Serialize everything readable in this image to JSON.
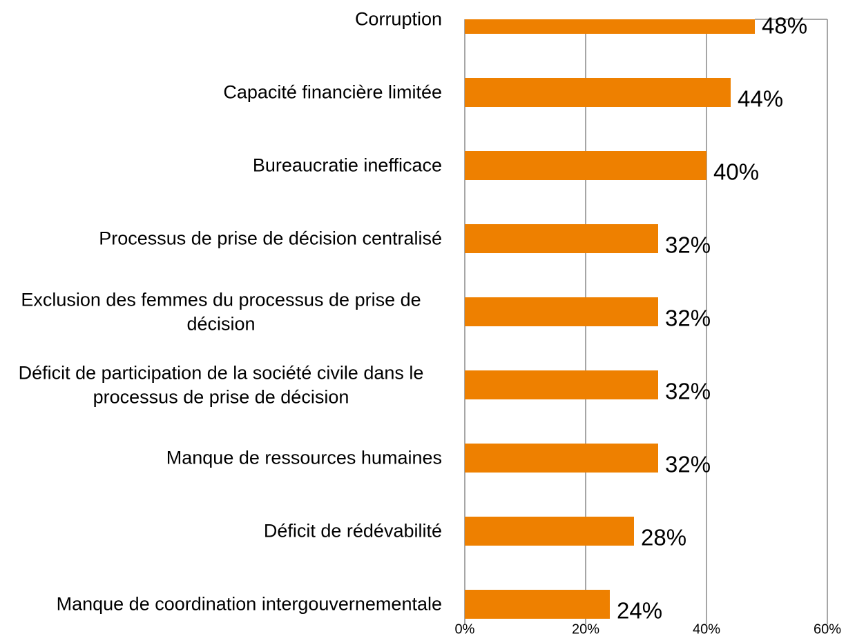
{
  "chart_data": {
    "type": "bar",
    "orientation": "horizontal",
    "categories": [
      "Corruption",
      "Capacité financière limitée",
      "Bureaucratie inefficace",
      "Processus de prise de décision centralisé",
      "Exclusion des femmes du processus de prise de décision",
      "Déficit de participation de la société civile dans le processus de prise de décision",
      "Manque de ressources humaines",
      "Déficit de rédévabilité",
      "Manque de coordination intergouvernementale"
    ],
    "values": [
      48,
      44,
      40,
      32,
      32,
      32,
      32,
      28,
      24
    ],
    "value_labels": [
      "48%",
      "44%",
      "40%",
      "32%",
      "32%",
      "32%",
      "32%",
      "28%",
      "24%"
    ],
    "color": "#ee8000",
    "xlim": [
      0,
      60
    ],
    "xticks": [
      {
        "value": 0,
        "label": "0%"
      },
      {
        "value": 20,
        "label": "20%"
      },
      {
        "value": 40,
        "label": "40%"
      },
      {
        "value": 60,
        "label": "60%"
      }
    ],
    "grid": true
  }
}
